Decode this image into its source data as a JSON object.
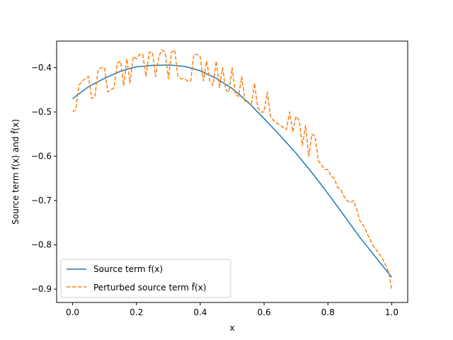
{
  "chart_data": {
    "type": "line",
    "xlabel": "x",
    "ylabel": "Source term f(x) and f̃(x)",
    "xlim": [
      -0.05,
      1.05
    ],
    "ylim": [
      -0.93,
      -0.34
    ],
    "xticks": [
      0.0,
      0.2,
      0.4,
      0.6,
      0.8,
      1.0
    ],
    "xtick_labels": [
      "0.0",
      "0.2",
      "0.4",
      "0.6",
      "0.8",
      "1.0"
    ],
    "yticks": [
      -0.9,
      -0.8,
      -0.7,
      -0.6,
      -0.5,
      -0.4
    ],
    "ytick_labels": [
      "−0.9",
      "−0.8",
      "−0.7",
      "−0.6",
      "−0.5",
      "−0.4"
    ],
    "grid": false,
    "legend_position": "lower-left",
    "series": [
      {
        "name": "Source term f(x)",
        "style": "solid",
        "color": "#1f77b4",
        "x": [
          0.0,
          0.05,
          0.1,
          0.15,
          0.2,
          0.25,
          0.3,
          0.35,
          0.4,
          0.45,
          0.5,
          0.55,
          0.6,
          0.65,
          0.7,
          0.75,
          0.8,
          0.85,
          0.9,
          0.95,
          1.0
        ],
        "y": [
          -0.47,
          -0.443,
          -0.424,
          -0.408,
          -0.398,
          -0.395,
          -0.394,
          -0.397,
          -0.407,
          -0.424,
          -0.447,
          -0.478,
          -0.515,
          -0.553,
          -0.593,
          -0.637,
          -0.684,
          -0.733,
          -0.783,
          -0.828,
          -0.873
        ]
      },
      {
        "name": "Perturbed source term f̃(x)",
        "style": "dashed",
        "color": "#ff7f0e",
        "x": [
          0.0,
          0.01,
          0.02,
          0.03,
          0.04,
          0.05,
          0.06,
          0.07,
          0.08,
          0.09,
          0.1,
          0.11,
          0.12,
          0.13,
          0.14,
          0.15,
          0.16,
          0.17,
          0.18,
          0.19,
          0.2,
          0.21,
          0.22,
          0.23,
          0.24,
          0.25,
          0.26,
          0.27,
          0.28,
          0.29,
          0.3,
          0.31,
          0.32,
          0.33,
          0.34,
          0.35,
          0.36,
          0.37,
          0.38,
          0.39,
          0.4,
          0.41,
          0.42,
          0.43,
          0.44,
          0.45,
          0.46,
          0.47,
          0.48,
          0.49,
          0.5,
          0.51,
          0.52,
          0.53,
          0.54,
          0.55,
          0.56,
          0.57,
          0.58,
          0.59,
          0.6,
          0.61,
          0.62,
          0.63,
          0.64,
          0.65,
          0.66,
          0.67,
          0.68,
          0.69,
          0.7,
          0.71,
          0.72,
          0.73,
          0.74,
          0.75,
          0.76,
          0.77,
          0.78,
          0.79,
          0.8,
          0.81,
          0.82,
          0.83,
          0.84,
          0.85,
          0.86,
          0.87,
          0.88,
          0.89,
          0.9,
          0.91,
          0.92,
          0.93,
          0.94,
          0.95,
          0.96,
          0.97,
          0.98,
          0.99,
          1.0
        ],
        "y": [
          -0.5,
          -0.495,
          -0.44,
          -0.43,
          -0.425,
          -0.42,
          -0.47,
          -0.465,
          -0.405,
          -0.4,
          -0.4,
          -0.455,
          -0.45,
          -0.445,
          -0.39,
          -0.385,
          -0.44,
          -0.38,
          -0.435,
          -0.375,
          -0.38,
          -0.37,
          -0.37,
          -0.42,
          -0.365,
          -0.365,
          -0.42,
          -0.375,
          -0.36,
          -0.365,
          -0.425,
          -0.365,
          -0.36,
          -0.42,
          -0.425,
          -0.425,
          -0.43,
          -0.43,
          -0.37,
          -0.37,
          -0.375,
          -0.43,
          -0.385,
          -0.43,
          -0.44,
          -0.385,
          -0.445,
          -0.4,
          -0.45,
          -0.455,
          -0.4,
          -0.46,
          -0.465,
          -0.42,
          -0.475,
          -0.48,
          -0.485,
          -0.435,
          -0.49,
          -0.5,
          -0.5,
          -0.455,
          -0.51,
          -0.52,
          -0.525,
          -0.53,
          -0.535,
          -0.54,
          -0.5,
          -0.545,
          -0.51,
          -0.52,
          -0.575,
          -0.53,
          -0.6,
          -0.55,
          -0.555,
          -0.61,
          -0.62,
          -0.63,
          -0.63,
          -0.645,
          -0.65,
          -0.67,
          -0.675,
          -0.69,
          -0.7,
          -0.705,
          -0.7,
          -0.72,
          -0.745,
          -0.755,
          -0.77,
          -0.785,
          -0.8,
          -0.81,
          -0.82,
          -0.83,
          -0.845,
          -0.86,
          -0.9
        ]
      }
    ]
  }
}
